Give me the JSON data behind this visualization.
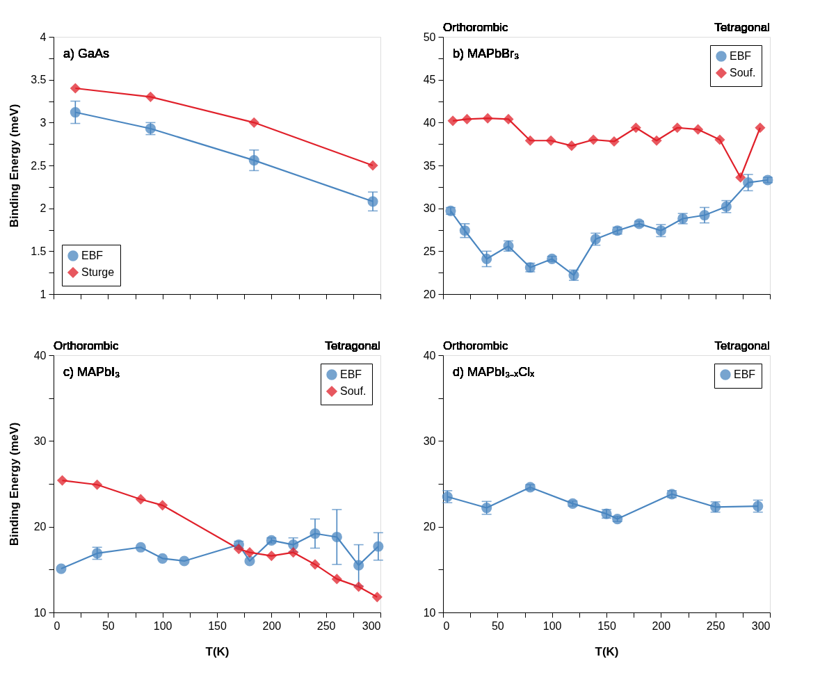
{
  "chart_data": [
    {
      "type": "line",
      "title": "a) GaAs",
      "ylabel": "Binding Energy (meV)",
      "xlim": [
        0,
        300
      ],
      "xticks": [
        0,
        {
          "value": 25,
          "label": null
        },
        50,
        {
          "value": 75,
          "label": null
        },
        100,
        {
          "value": 125,
          "label": null
        },
        150,
        {
          "value": 175,
          "label": null
        },
        200,
        {
          "value": 225,
          "label": null
        },
        250,
        {
          "value": 275,
          "label": null
        },
        300
      ],
      "ylim": [
        1,
        4
      ],
      "yticks": [
        1,
        {
          "value": 1.25,
          "label": null
        },
        1.5,
        {
          "value": 1.75,
          "label": null
        },
        2,
        {
          "value": 2.25,
          "label": null
        },
        2.5,
        {
          "value": 2.75,
          "label": null
        },
        3,
        {
          "value": 3.25,
          "label": null
        },
        3.5,
        {
          "value": 3.75,
          "label": null
        },
        4
      ],
      "tick_labels": "y",
      "legend": "bottom left",
      "line_style": "solid",
      "series": [
        {
          "name": "EBF",
          "color": "#4a86c0",
          "marker": "circle",
          "x": [
            20,
            89,
            184,
            293
          ],
          "values": [
            3.12,
            2.93,
            2.56,
            2.08
          ],
          "errors": [
            0.13,
            0.07,
            0.12,
            0.11
          ]
        },
        {
          "name": "Sturge",
          "color": "#e0202a",
          "marker": "diamond",
          "x": [
            20,
            89,
            184,
            293
          ],
          "values": [
            3.4,
            3.3,
            3.0,
            2.5
          ]
        }
      ]
    },
    {
      "type": "line",
      "title": "b) MAPbBr₃",
      "annotations": [
        "Orthorombic",
        "Tetragonal"
      ],
      "xlim": [
        0,
        300
      ],
      "xticks": [
        0,
        {
          "value": 25,
          "label": null
        },
        50,
        {
          "value": 75,
          "label": null
        },
        100,
        {
          "value": 125,
          "label": null
        },
        150,
        {
          "value": 175,
          "label": null
        },
        200,
        {
          "value": 225,
          "label": null
        },
        250,
        {
          "value": 275,
          "label": null
        },
        300
      ],
      "ylim": [
        20,
        50
      ],
      "yticks": [
        20,
        {
          "value": 22.5,
          "label": null
        },
        25,
        {
          "value": 27.5,
          "label": null
        },
        30,
        {
          "value": 32.5,
          "label": null
        },
        35,
        {
          "value": 37.5,
          "label": null
        },
        40,
        {
          "value": 42.5,
          "label": null
        },
        45,
        {
          "value": 47.5,
          "label": null
        },
        50
      ],
      "tick_labels": "y",
      "legend": "top right",
      "line_style": "solid",
      "series": [
        {
          "name": "EBF",
          "color": "#4a86c0",
          "marker": "circle",
          "x": [
            7,
            20,
            40,
            60,
            80,
            100,
            120,
            140,
            160,
            180,
            200,
            220,
            240,
            260,
            280,
            298
          ],
          "values": [
            29.7,
            27.4,
            24.1,
            25.6,
            23.1,
            24.1,
            22.2,
            26.4,
            27.4,
            28.2,
            27.4,
            28.8,
            29.2,
            30.2,
            33.0,
            33.3
          ],
          "errors": [
            0.4,
            0.8,
            0.9,
            0.6,
            0.5,
            0.3,
            0.6,
            0.7,
            0.4,
            0.3,
            0.7,
            0.6,
            0.9,
            0.7,
            0.95,
            0.3
          ]
        },
        {
          "name": "Souf.",
          "color": "#e0202a",
          "marker": "diamond",
          "x": [
            9,
            22,
            41,
            60,
            80,
            99,
            118,
            138,
            157,
            177,
            196,
            215,
            234,
            254,
            273,
            291
          ],
          "values": [
            40.2,
            40.4,
            40.5,
            40.4,
            37.9,
            37.9,
            37.3,
            38.0,
            37.8,
            39.4,
            37.9,
            39.4,
            39.2,
            38.0,
            33.6,
            39.4
          ]
        }
      ]
    },
    {
      "type": "line",
      "title": "c) MAPbI₃",
      "annotations": [
        "Orthorombic",
        "Tetragonal"
      ],
      "xlabel": "T(K)",
      "ylabel": "Binding Energy (meV)",
      "xlim": [
        0,
        300
      ],
      "xticks": [
        0,
        {
          "value": 25,
          "label": null
        },
        50,
        {
          "value": 75,
          "label": null
        },
        100,
        {
          "value": 125,
          "label": null
        },
        150,
        {
          "value": 175,
          "label": null
        },
        200,
        {
          "value": 225,
          "label": null
        },
        250,
        {
          "value": 275,
          "label": null
        },
        300
      ],
      "ylim": [
        10,
        40
      ],
      "yticks": [
        10,
        {
          "value": 15,
          "label": null
        },
        20,
        {
          "value": 25,
          "label": null
        },
        30,
        {
          "value": 35,
          "label": null
        },
        40
      ],
      "legend": "top right",
      "line_style": "solid",
      "series": [
        {
          "name": "EBF",
          "color": "#4a86c0",
          "marker": "circle",
          "x": [
            7,
            40,
            80,
            100,
            120,
            170,
            180,
            200,
            220,
            240,
            260,
            280,
            298
          ],
          "values": [
            15.1,
            16.9,
            17.6,
            16.3,
            16.0,
            17.9,
            16.0,
            18.4,
            17.9,
            19.2,
            18.8,
            15.5,
            17.7
          ],
          "errors": [
            null,
            0.7,
            null,
            null,
            null,
            0.4,
            null,
            0.3,
            0.8,
            1.7,
            3.2,
            2.4,
            1.6
          ]
        },
        {
          "name": "Souf.",
          "color": "#e0202a",
          "marker": "diamond",
          "x": [
            8,
            40,
            80,
            100,
            170,
            180,
            200,
            220,
            240,
            260,
            280,
            297
          ],
          "values": [
            25.4,
            24.9,
            23.2,
            22.5,
            17.4,
            17.0,
            16.6,
            17.0,
            15.6,
            13.9,
            13.0,
            11.8
          ]
        }
      ]
    },
    {
      "type": "line",
      "title": "d) MAPbI₃₋ₓClₓ",
      "annotations": [
        "Orthorombic",
        "Tetragonal"
      ],
      "xlabel": "T(K)",
      "xlim": [
        0,
        300
      ],
      "xticks": [
        0,
        {
          "value": 25,
          "label": null
        },
        50,
        {
          "value": 75,
          "label": null
        },
        100,
        {
          "value": 125,
          "label": null
        },
        150,
        {
          "value": 175,
          "label": null
        },
        200,
        {
          "value": 225,
          "label": null
        },
        250,
        {
          "value": 275,
          "label": null
        },
        300
      ],
      "ylim": [
        10,
        40
      ],
      "yticks": [
        10,
        {
          "value": 15,
          "label": null
        },
        20,
        {
          "value": 25,
          "label": null
        },
        30,
        {
          "value": 35,
          "label": null
        },
        40
      ],
      "legend": "top right",
      "line_style": "solid",
      "series": [
        {
          "name": "EBF",
          "color": "#4a86c0",
          "marker": "circle",
          "x": [
            4,
            40,
            80,
            119,
            150,
            160,
            210,
            250,
            289
          ],
          "values": [
            23.5,
            22.2,
            24.6,
            22.7,
            21.5,
            20.9,
            23.8,
            22.3,
            22.4
          ],
          "errors": [
            0.7,
            0.75,
            0.3,
            0.3,
            0.5,
            0.3,
            0.4,
            0.6,
            0.7
          ]
        }
      ]
    }
  ]
}
